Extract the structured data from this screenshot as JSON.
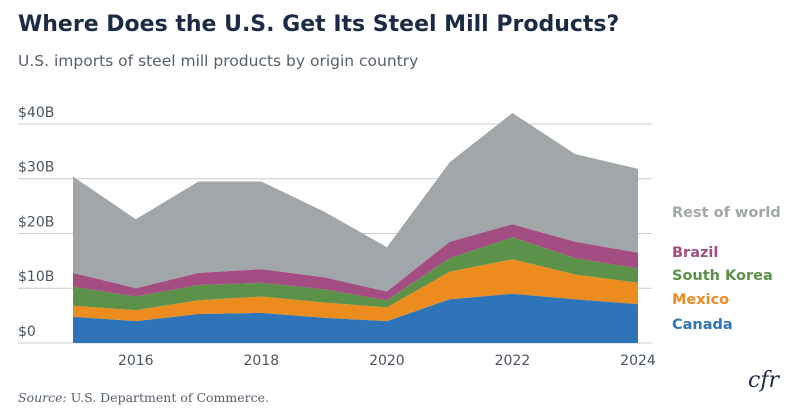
{
  "chart_data": {
    "type": "area",
    "stacked": true,
    "title": "Where Does the U.S. Get Its Steel Mill Products?",
    "subtitle": "U.S. imports of steel mill products by origin country",
    "x": [
      2015,
      2016,
      2017,
      2018,
      2019,
      2020,
      2021,
      2022,
      2023,
      2024
    ],
    "xticks": [
      2016,
      2018,
      2020,
      2022,
      2024
    ],
    "ylim": [
      0,
      42
    ],
    "yticks": [
      0,
      10,
      20,
      30,
      40
    ],
    "ytick_labels": [
      "$0",
      "$10B",
      "$20B",
      "$30B",
      "$40B"
    ],
    "series": [
      {
        "name": "Canada",
        "color": "#2f74b8",
        "values": [
          4.8,
          4.0,
          5.3,
          5.5,
          4.6,
          4.0,
          8.0,
          9.0,
          8.0,
          7.1
        ]
      },
      {
        "name": "Mexico",
        "color": "#ec8c1f",
        "values": [
          2.0,
          2.0,
          2.5,
          3.0,
          2.8,
          2.5,
          5.0,
          6.3,
          4.5,
          3.9
        ]
      },
      {
        "name": "South Korea",
        "color": "#5b9148",
        "values": [
          3.5,
          2.5,
          2.8,
          2.5,
          2.4,
          1.3,
          2.5,
          4.0,
          3.0,
          2.6
        ]
      },
      {
        "name": "Brazil",
        "color": "#a44d83",
        "values": [
          2.5,
          1.5,
          2.2,
          2.5,
          2.2,
          1.6,
          3.0,
          2.4,
          3.0,
          2.9
        ]
      },
      {
        "name": "Rest of world",
        "color": "#a1a6a8",
        "values": [
          17.6,
          12.6,
          16.7,
          16.0,
          12.0,
          8.1,
          14.5,
          20.3,
          16.0,
          15.3
        ]
      }
    ]
  },
  "source": {
    "label": "Source:",
    "text": "U.S. Department of Commerce."
  },
  "logo": "cfr"
}
